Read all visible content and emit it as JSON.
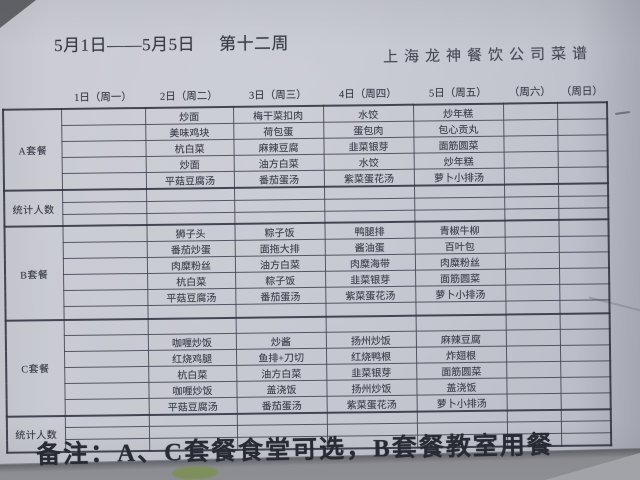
{
  "colors": {
    "paper": "#c6c8d1",
    "ink": "#3e404c",
    "title_ink": "#383a45",
    "note_ink": "#282a34",
    "background": "#5f6066",
    "sticker_green": "#7d9058"
  },
  "titles": {
    "week_range": "5月1日——5月5日",
    "week_label": "第十二周",
    "company": "上海龙神餐饮公司菜谱"
  },
  "note": "备注：A、C套餐食堂可选，B套餐教室用餐",
  "table": {
    "corner_header": "",
    "column_headers": [
      "1日（周一）",
      "2日（周二）",
      "3日（周三）",
      "4日（周四）",
      "5日（周五）",
      "（周六）",
      "（周日）"
    ],
    "sections": [
      {
        "id": "set-a",
        "label": "A套餐",
        "rows": [
          [
            "",
            "炒面",
            "梅干菜扣肉",
            "水饺",
            "炒年糕",
            "",
            ""
          ],
          [
            "",
            "美味鸡块",
            "荷包蛋",
            "蛋包肉",
            "包心贡丸",
            "",
            ""
          ],
          [
            "",
            "杭白菜",
            "麻辣豆腐",
            "韭菜银芽",
            "面筋圆菜",
            "",
            ""
          ],
          [
            "",
            "炒面",
            "油方白菜",
            "水饺",
            "炒年糕",
            "",
            ""
          ],
          [
            "",
            "平菇豆腐汤",
            "番茄蛋汤",
            "紫菜蛋花汤",
            "萝卜小排汤",
            "",
            ""
          ]
        ]
      },
      {
        "id": "stat-top",
        "label": "统计人数",
        "rows": [
          [
            "",
            "",
            "",
            "",
            "",
            "",
            ""
          ],
          [
            "",
            "",
            "",
            "",
            "",
            "",
            ""
          ],
          [
            "",
            "",
            "",
            "",
            "",
            "",
            ""
          ]
        ]
      },
      {
        "id": "set-b",
        "label": "B套餐",
        "rows": [
          [
            "",
            "狮子头",
            "粽子饭",
            "鸭腿排",
            "青椒牛柳",
            "",
            ""
          ],
          [
            "",
            "番茄炒蛋",
            "面拖大排",
            "酱油蛋",
            "百叶包",
            "",
            ""
          ],
          [
            "",
            "肉糜粉丝",
            "油方白菜",
            "肉糜海带",
            "肉糜粉丝",
            "",
            ""
          ],
          [
            "",
            "杭白菜",
            "粽子饭",
            "韭菜银芽",
            "面筋圆菜",
            "",
            ""
          ],
          [
            "",
            "平菇豆腐汤",
            "番茄蛋汤",
            "紫菜蛋花汤",
            "萝卜小排汤",
            "",
            ""
          ],
          [
            "",
            "",
            "",
            "",
            "",
            "",
            ""
          ]
        ]
      },
      {
        "id": "set-c",
        "label": "C套餐",
        "rows": [
          [
            "",
            "",
            "",
            "",
            "",
            "",
            ""
          ],
          [
            "",
            "咖喱炒饭",
            "炒酱",
            "扬州炒饭",
            "麻辣豆腐",
            "",
            ""
          ],
          [
            "",
            "红烧鸡腿",
            "鱼排+刀切",
            "红烧鸭根",
            "炸翅根",
            "",
            ""
          ],
          [
            "",
            "杭白菜",
            "油方白菜",
            "韭菜银芽",
            "面筋圆菜",
            "",
            ""
          ],
          [
            "",
            "咖喱炒饭",
            "盖浇饭",
            "扬州炒饭",
            "盖浇饭",
            "",
            ""
          ],
          [
            "",
            "平菇豆腐汤",
            "番茄蛋汤",
            "紫菜蛋花汤",
            "萝卜小排汤",
            "",
            ""
          ]
        ]
      },
      {
        "id": "stat-bottom",
        "label": "统计人数",
        "rows": [
          [
            "",
            "",
            "",
            "",
            "",
            "",
            ""
          ],
          [
            "",
            "",
            "",
            "",
            "",
            "",
            ""
          ],
          [
            "",
            "",
            "",
            "",
            "",
            "",
            ""
          ]
        ]
      }
    ]
  }
}
